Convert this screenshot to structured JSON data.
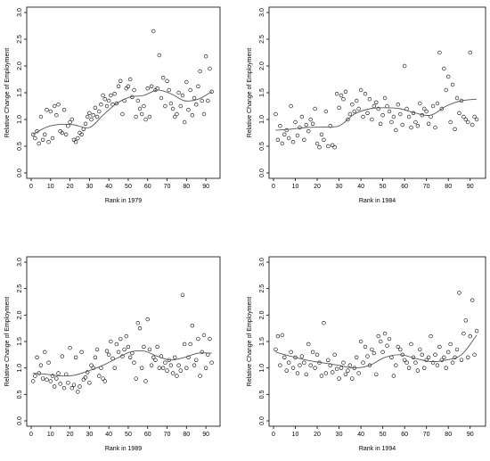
{
  "chart_data": [
    {
      "type": "scatter",
      "xlabel": "Rank in 1979",
      "ylabel": "Relative Change of Employment",
      "xlim": [
        0,
        95
      ],
      "ylim": [
        0,
        3
      ],
      "xticks": [
        0,
        10,
        20,
        30,
        40,
        50,
        60,
        70,
        80,
        90
      ],
      "yticks": [
        "0.0",
        "0.5",
        "1.0",
        "1.5",
        "2.0",
        "2.5",
        "3.0"
      ],
      "points": {
        "x": [
          1,
          2,
          3,
          4,
          5,
          6,
          7,
          8,
          9,
          10,
          11,
          12,
          13,
          14,
          15,
          16,
          17,
          18,
          19,
          20,
          21,
          22,
          23,
          24,
          25,
          26,
          27,
          28,
          29,
          30,
          31,
          32,
          33,
          34,
          35,
          36,
          37,
          38,
          39,
          40,
          41,
          42,
          43,
          44,
          45,
          46,
          47,
          48,
          49,
          50,
          51,
          52,
          53,
          54,
          55,
          56,
          57,
          58,
          59,
          60,
          61,
          62,
          63,
          64,
          65,
          66,
          67,
          68,
          69,
          70,
          71,
          72,
          73,
          74,
          75,
          76,
          77,
          78,
          79,
          80,
          81,
          82,
          83,
          84,
          85,
          86,
          87,
          88,
          89,
          90,
          91,
          92,
          93
        ],
        "y": [
          0.72,
          0.65,
          0.78,
          0.55,
          1.05,
          0.62,
          0.72,
          1.18,
          0.58,
          1.15,
          0.65,
          1.25,
          1.08,
          1.28,
          0.78,
          0.75,
          1.18,
          0.72,
          0.88,
          0.95,
          1.0,
          0.62,
          0.58,
          0.65,
          0.75,
          0.72,
          0.82,
          0.92,
          1.05,
          1.12,
          1.0,
          1.08,
          1.22,
          1.05,
          1.15,
          1.28,
          1.45,
          1.38,
          1.25,
          1.35,
          1.45,
          1.28,
          1.48,
          1.3,
          1.62,
          1.72,
          1.1,
          1.35,
          1.58,
          1.62,
          1.75,
          1.42,
          1.55,
          1.05,
          1.35,
          1.2,
          1.1,
          1.25,
          1.0,
          1.58,
          1.05,
          1.62,
          2.65,
          1.55,
          1.58,
          2.2,
          1.4,
          1.78,
          1.25,
          1.72,
          1.55,
          1.3,
          1.2,
          1.05,
          1.1,
          1.5,
          1.25,
          1.45,
          0.95,
          1.7,
          1.18,
          1.55,
          1.08,
          1.4,
          1.28,
          1.62,
          1.9,
          1.35,
          1.1,
          2.18,
          1.35,
          1.95,
          1.52
        ]
      },
      "smooth_x": [
        1,
        8,
        15,
        22,
        30,
        37,
        44,
        51,
        58,
        65,
        72,
        79,
        86,
        93
      ],
      "smooth_y": [
        0.72,
        0.86,
        0.91,
        0.9,
        0.85,
        1.08,
        1.3,
        1.42,
        1.45,
        1.55,
        1.48,
        1.35,
        1.38,
        1.52
      ]
    },
    {
      "type": "scatter",
      "xlabel": "Rank in 1984",
      "ylabel": "Relative Change of Employment",
      "xlim": [
        0,
        95
      ],
      "ylim": [
        0,
        3
      ],
      "xticks": [
        0,
        10,
        20,
        30,
        40,
        50,
        60,
        70,
        80,
        90
      ],
      "yticks": [
        "0.0",
        "0.5",
        "1.0",
        "1.5",
        "2.0",
        "2.5",
        "3.0"
      ],
      "points": {
        "x": [
          1,
          2,
          3,
          4,
          5,
          6,
          7,
          8,
          9,
          10,
          11,
          12,
          13,
          14,
          15,
          16,
          17,
          18,
          19,
          20,
          21,
          22,
          23,
          24,
          25,
          26,
          27,
          28,
          29,
          30,
          31,
          32,
          33,
          34,
          35,
          36,
          37,
          38,
          39,
          40,
          41,
          42,
          43,
          44,
          45,
          46,
          47,
          48,
          49,
          50,
          51,
          52,
          53,
          54,
          55,
          56,
          57,
          58,
          59,
          60,
          61,
          62,
          63,
          64,
          65,
          66,
          67,
          68,
          69,
          70,
          71,
          72,
          73,
          74,
          75,
          76,
          77,
          78,
          79,
          80,
          81,
          82,
          83,
          84,
          85,
          86,
          87,
          88,
          89,
          90,
          91,
          92,
          93
        ],
        "y": [
          1.1,
          0.62,
          0.88,
          0.55,
          0.72,
          0.8,
          0.65,
          1.25,
          0.58,
          0.95,
          0.7,
          0.85,
          1.05,
          0.62,
          0.9,
          0.78,
          1.0,
          0.92,
          1.2,
          0.55,
          0.48,
          0.72,
          0.62,
          1.15,
          0.5,
          0.88,
          0.52,
          0.48,
          1.48,
          1.22,
          1.45,
          1.38,
          1.52,
          1.0,
          1.1,
          1.28,
          1.15,
          1.35,
          1.2,
          1.55,
          1.05,
          1.48,
          1.12,
          1.38,
          1.0,
          1.25,
          1.32,
          1.2,
          0.92,
          1.08,
          1.4,
          1.25,
          1.15,
          0.95,
          1.05,
          0.8,
          1.28,
          1.1,
          0.9,
          2.0,
          1.2,
          1.05,
          0.85,
          1.12,
          0.95,
          0.88,
          1.3,
          1.08,
          1.2,
          1.15,
          0.92,
          1.05,
          1.25,
          0.85,
          1.3,
          2.25,
          1.2,
          1.95,
          1.55,
          1.8,
          0.95,
          1.65,
          0.82,
          1.4,
          1.12,
          1.35,
          1.05,
          1.0,
          0.95,
          2.25,
          0.9,
          1.05,
          1.0
        ]
      },
      "smooth_x": [
        1,
        8,
        15,
        22,
        30,
        37,
        44,
        51,
        58,
        65,
        72,
        79,
        86,
        93
      ],
      "smooth_y": [
        0.8,
        0.82,
        0.85,
        0.86,
        0.88,
        1.1,
        1.2,
        1.22,
        1.2,
        1.12,
        1.08,
        1.25,
        1.35,
        1.38
      ]
    },
    {
      "type": "scatter",
      "xlabel": "Rank in 1989",
      "ylabel": "Relative Change of Employment",
      "xlim": [
        0,
        95
      ],
      "ylim": [
        0,
        3
      ],
      "xticks": [
        0,
        10,
        20,
        30,
        40,
        50,
        60,
        70,
        80,
        90
      ],
      "yticks": [
        "0.0",
        "0.5",
        "1.0",
        "1.5",
        "2.0",
        "2.5",
        "3.0"
      ],
      "points": {
        "x": [
          1,
          2,
          3,
          4,
          5,
          6,
          7,
          8,
          9,
          10,
          11,
          12,
          13,
          14,
          15,
          16,
          17,
          18,
          19,
          20,
          21,
          22,
          23,
          24,
          25,
          26,
          27,
          28,
          29,
          30,
          31,
          32,
          33,
          34,
          35,
          36,
          37,
          38,
          39,
          40,
          41,
          42,
          43,
          44,
          45,
          46,
          47,
          48,
          49,
          50,
          51,
          52,
          53,
          54,
          55,
          56,
          57,
          58,
          59,
          60,
          61,
          62,
          63,
          64,
          65,
          66,
          67,
          68,
          69,
          70,
          71,
          72,
          73,
          74,
          75,
          76,
          77,
          78,
          79,
          80,
          81,
          82,
          83,
          84,
          85,
          86,
          87,
          88,
          89,
          90,
          91,
          92,
          93
        ],
        "y": [
          0.75,
          0.85,
          1.2,
          0.9,
          1.05,
          0.8,
          1.3,
          0.78,
          1.1,
          0.75,
          0.85,
          0.65,
          0.8,
          0.9,
          0.7,
          1.22,
          0.62,
          0.88,
          0.72,
          1.38,
          0.62,
          0.68,
          1.2,
          0.55,
          0.65,
          1.3,
          0.78,
          0.82,
          0.92,
          0.72,
          1.05,
          1.0,
          1.2,
          1.35,
          0.85,
          1.0,
          0.8,
          0.75,
          1.32,
          1.25,
          1.5,
          1.18,
          1.0,
          1.45,
          1.3,
          1.55,
          1.22,
          1.35,
          1.6,
          1.4,
          1.2,
          1.28,
          1.1,
          0.8,
          1.85,
          1.75,
          1.0,
          1.4,
          0.75,
          1.92,
          1.35,
          1.05,
          1.2,
          1.15,
          1.4,
          1.0,
          1.22,
          1.0,
          1.1,
          0.95,
          1.15,
          1.05,
          0.9,
          1.2,
          0.85,
          1.05,
          0.95,
          2.38,
          1.45,
          1.0,
          1.2,
          1.45,
          1.8,
          1.05,
          1.15,
          1.55,
          0.85,
          1.3,
          1.62,
          1.0,
          1.25,
          1.55,
          1.1
        ]
      },
      "smooth_x": [
        1,
        8,
        15,
        22,
        30,
        37,
        44,
        51,
        58,
        65,
        72,
        79,
        86,
        93
      ],
      "smooth_y": [
        0.9,
        0.88,
        0.85,
        0.86,
        0.95,
        1.05,
        1.18,
        1.3,
        1.32,
        1.22,
        1.15,
        1.2,
        1.28,
        1.28
      ]
    },
    {
      "type": "scatter",
      "xlabel": "Rank in 1994",
      "ylabel": "Relative Change of Employment",
      "xlim": [
        0,
        95
      ],
      "ylim": [
        0,
        3
      ],
      "xticks": [
        0,
        10,
        20,
        30,
        40,
        50,
        60,
        70,
        80,
        90
      ],
      "yticks": [
        "0.0",
        "0.5",
        "1.0",
        "1.5",
        "2.0",
        "2.5",
        "3.0"
      ],
      "points": {
        "x": [
          1,
          2,
          3,
          4,
          5,
          6,
          7,
          8,
          9,
          10,
          11,
          12,
          13,
          14,
          15,
          16,
          17,
          18,
          19,
          20,
          21,
          22,
          23,
          24,
          25,
          26,
          27,
          28,
          29,
          30,
          31,
          32,
          33,
          34,
          35,
          36,
          37,
          38,
          39,
          40,
          41,
          42,
          43,
          44,
          45,
          46,
          47,
          48,
          49,
          50,
          51,
          52,
          53,
          54,
          55,
          56,
          57,
          58,
          59,
          60,
          61,
          62,
          63,
          64,
          65,
          66,
          67,
          68,
          69,
          70,
          71,
          72,
          73,
          74,
          75,
          76,
          77,
          78,
          79,
          80,
          81,
          82,
          83,
          84,
          85,
          86,
          87,
          88,
          89,
          90,
          91,
          92,
          93
        ],
        "y": [
          1.35,
          1.6,
          1.05,
          1.62,
          1.2,
          0.95,
          1.1,
          1.3,
          1.0,
          1.2,
          0.9,
          1.05,
          1.22,
          1.1,
          0.88,
          1.45,
          1.05,
          1.3,
          1.0,
          1.25,
          1.1,
          0.85,
          1.85,
          0.9,
          1.15,
          1.05,
          0.92,
          1.25,
          0.98,
          0.8,
          1.0,
          1.1,
          0.88,
          0.95,
          1.05,
          0.8,
          1.0,
          1.2,
          0.9,
          1.5,
          1.1,
          1.4,
          1.22,
          1.05,
          1.35,
          1.28,
          0.88,
          1.6,
          1.5,
          1.3,
          1.65,
          1.42,
          1.55,
          1.2,
          0.85,
          1.05,
          1.4,
          1.35,
          1.25,
          1.15,
          1.1,
          1.0,
          1.45,
          1.2,
          1.1,
          0.95,
          1.35,
          1.25,
          1.0,
          1.15,
          1.2,
          1.6,
          1.1,
          1.25,
          1.05,
          1.4,
          1.15,
          1.2,
          1.0,
          1.3,
          1.45,
          1.1,
          1.2,
          1.35,
          2.42,
          1.15,
          1.65,
          1.9,
          1.2,
          1.6,
          2.28,
          1.25,
          1.7
        ]
      },
      "smooth_x": [
        1,
        8,
        15,
        22,
        30,
        37,
        44,
        51,
        58,
        65,
        72,
        79,
        86,
        93
      ],
      "smooth_y": [
        1.3,
        1.22,
        1.15,
        1.1,
        1.05,
        1.0,
        1.05,
        1.2,
        1.25,
        1.18,
        1.12,
        1.15,
        1.25,
        1.62
      ]
    }
  ]
}
